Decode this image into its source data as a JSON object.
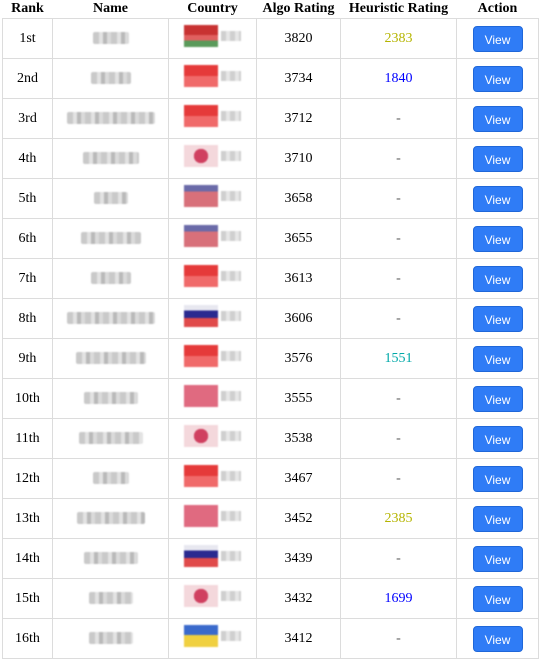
{
  "table": {
    "headers": {
      "rank": "Rank",
      "name": "Name",
      "country": "Country",
      "algo": "Algo Rating",
      "heuristic": "Heuristic Rating",
      "action": "Action"
    },
    "rows": [
      {
        "rank": "1st",
        "algo": "3820",
        "heuristic": "2383",
        "heur_color": "yellow",
        "action": "View",
        "flag": "red-green"
      },
      {
        "rank": "2nd",
        "algo": "3734",
        "heuristic": "1840",
        "heur_color": "blue",
        "action": "View",
        "flag": "red"
      },
      {
        "rank": "3rd",
        "algo": "3712",
        "heuristic": "-",
        "heur_color": "none",
        "action": "View",
        "flag": "red"
      },
      {
        "rank": "4th",
        "algo": "3710",
        "heuristic": "-",
        "heur_color": "none",
        "action": "View",
        "flag": "small-red"
      },
      {
        "rank": "5th",
        "algo": "3658",
        "heuristic": "-",
        "heur_color": "none",
        "action": "View",
        "flag": "blue-red"
      },
      {
        "rank": "6th",
        "algo": "3655",
        "heuristic": "-",
        "heur_color": "none",
        "action": "View",
        "flag": "blue-red"
      },
      {
        "rank": "7th",
        "algo": "3613",
        "heuristic": "-",
        "heur_color": "none",
        "action": "View",
        "flag": "red"
      },
      {
        "rank": "8th",
        "algo": "3606",
        "heuristic": "-",
        "heur_color": "none",
        "action": "View",
        "flag": "navy"
      },
      {
        "rank": "9th",
        "algo": "3576",
        "heuristic": "1551",
        "heur_color": "cyan",
        "action": "View",
        "flag": "red"
      },
      {
        "rank": "10th",
        "algo": "3555",
        "heuristic": "-",
        "heur_color": "none",
        "action": "View",
        "flag": "pink"
      },
      {
        "rank": "11th",
        "algo": "3538",
        "heuristic": "-",
        "heur_color": "none",
        "action": "View",
        "flag": "small-red"
      },
      {
        "rank": "12th",
        "algo": "3467",
        "heuristic": "-",
        "heur_color": "none",
        "action": "View",
        "flag": "red"
      },
      {
        "rank": "13th",
        "algo": "3452",
        "heuristic": "2385",
        "heur_color": "yellow",
        "action": "View",
        "flag": "pink"
      },
      {
        "rank": "14th",
        "algo": "3439",
        "heuristic": "-",
        "heur_color": "none",
        "action": "View",
        "flag": "navy"
      },
      {
        "rank": "15th",
        "algo": "3432",
        "heuristic": "1699",
        "heur_color": "blue",
        "action": "View",
        "flag": "small-red"
      },
      {
        "rank": "16th",
        "algo": "3412",
        "heuristic": "-",
        "heur_color": "none",
        "action": "View",
        "flag": "blue-yellow"
      }
    ]
  },
  "colors": {
    "algo_rating": "#ff0000",
    "heuristic_yellow": "#b5b500",
    "heuristic_blue": "#0000ff",
    "heuristic_cyan": "#00a8a8",
    "button_bg": "#2f7cf6"
  }
}
